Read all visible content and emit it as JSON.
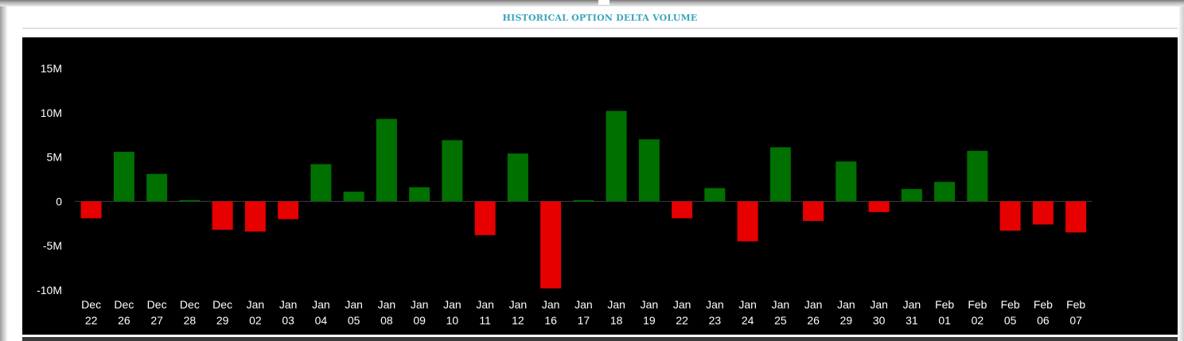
{
  "title": "HISTORICAL OPTION DELTA VOLUME",
  "colors": {
    "positive": "#007000",
    "negative": "#e60000",
    "background": "#000000",
    "axis_text": "#ffffff",
    "title": "#3aa6bd"
  },
  "chart_data": {
    "type": "bar",
    "title": "HISTORICAL OPTION DELTA VOLUME",
    "xlabel": "",
    "ylabel": "",
    "ylim": [
      -10000000,
      15000000
    ],
    "yticks": [
      15000000,
      10000000,
      5000000,
      0,
      -5000000,
      -10000000
    ],
    "ytick_labels": [
      "15M",
      "10M",
      "5M",
      "0",
      "-5M",
      "-10M"
    ],
    "grid": false,
    "legend": "none",
    "categories": [
      [
        "Dec",
        "22"
      ],
      [
        "Dec",
        "26"
      ],
      [
        "Dec",
        "27"
      ],
      [
        "Dec",
        "28"
      ],
      [
        "Dec",
        "29"
      ],
      [
        "Jan",
        "02"
      ],
      [
        "Jan",
        "03"
      ],
      [
        "Jan",
        "04"
      ],
      [
        "Jan",
        "05"
      ],
      [
        "Jan",
        "08"
      ],
      [
        "Jan",
        "09"
      ],
      [
        "Jan",
        "10"
      ],
      [
        "Jan",
        "11"
      ],
      [
        "Jan",
        "12"
      ],
      [
        "Jan",
        "16"
      ],
      [
        "Jan",
        "17"
      ],
      [
        "Jan",
        "18"
      ],
      [
        "Jan",
        "19"
      ],
      [
        "Jan",
        "22"
      ],
      [
        "Jan",
        "23"
      ],
      [
        "Jan",
        "24"
      ],
      [
        "Jan",
        "25"
      ],
      [
        "Jan",
        "26"
      ],
      [
        "Jan",
        "29"
      ],
      [
        "Jan",
        "30"
      ],
      [
        "Jan",
        "31"
      ],
      [
        "Feb",
        "01"
      ],
      [
        "Feb",
        "02"
      ],
      [
        "Feb",
        "05"
      ],
      [
        "Feb",
        "06"
      ],
      [
        "Feb",
        "07"
      ]
    ],
    "values": [
      -1900000,
      5600000,
      3100000,
      150000,
      -3200000,
      -3400000,
      -2000000,
      4200000,
      1100000,
      9300000,
      1600000,
      6900000,
      -3800000,
      5400000,
      -9800000,
      150000,
      10200000,
      7000000,
      -1900000,
      1500000,
      -4500000,
      6100000,
      -2200000,
      4500000,
      -1200000,
      1400000,
      2200000,
      5700000,
      -3300000,
      -2600000,
      -3500000
    ]
  }
}
